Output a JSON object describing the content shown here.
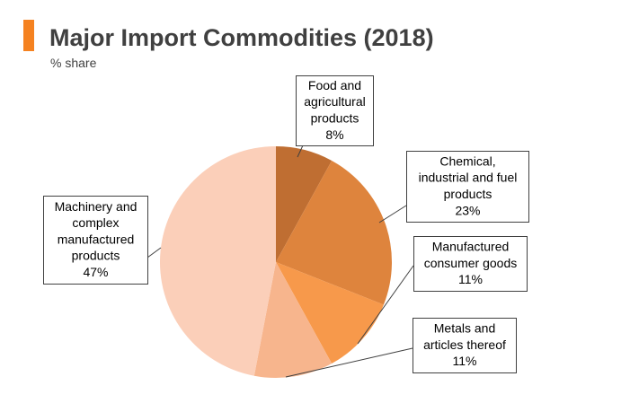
{
  "header": {
    "title": "Major Import Commodities (2018)",
    "subtitle": "% share",
    "accent_color": "#f58220"
  },
  "chart_data": {
    "type": "pie",
    "title": "Major Import Commodities (2018)",
    "subtitle": "% share",
    "unit": "%",
    "slices": [
      {
        "label_lines": [
          "Food and",
          "agricultural",
          "products"
        ],
        "value": 8,
        "value_label": "8%",
        "color": "#bf6e32"
      },
      {
        "label_lines": [
          "Chemical,",
          "industrial and fuel",
          "products"
        ],
        "value": 23,
        "value_label": "23%",
        "color": "#de843d"
      },
      {
        "label_lines": [
          "Manufactured",
          "consumer goods"
        ],
        "value": 11,
        "value_label": "11%",
        "color": "#f7994b"
      },
      {
        "label_lines": [
          "Metals and",
          "articles thereof"
        ],
        "value": 11,
        "value_label": "11%",
        "color": "#f7b58d"
      },
      {
        "label_lines": [
          "Machinery and",
          "complex",
          "manufactured",
          "products"
        ],
        "value": 47,
        "value_label": "47%",
        "color": "#fbcfb9"
      }
    ]
  }
}
